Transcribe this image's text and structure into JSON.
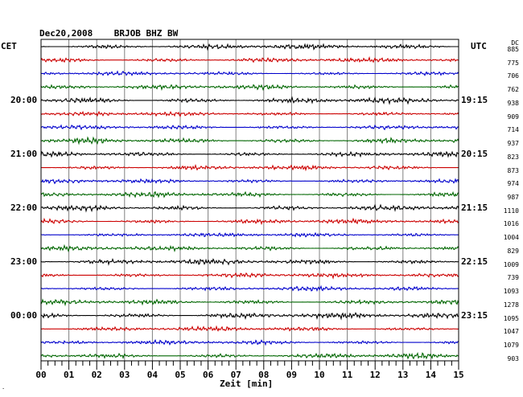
{
  "header": {
    "title": "Dec20,2008    BRJOB BHZ BW",
    "left_label": "CET",
    "right_label": "UTC",
    "dc_label": "DC"
  },
  "trace_colors": [
    "#000000",
    "#cc0000",
    "#0000cc",
    "#006600"
  ],
  "grid_color": "#808080",
  "traces": {
    "offsets": [
      "885",
      "775",
      "706",
      "762",
      "938",
      "909",
      "714",
      "937",
      "823",
      "873",
      "974",
      "987",
      "1110",
      "1016",
      "1004",
      "829",
      "1009",
      "739",
      "1093",
      "1278",
      "1095",
      "1047",
      "1079",
      "903"
    ],
    "amplitudes": [
      2.2,
      2.0,
      1.6,
      2.0,
      2.4,
      1.8,
      1.9,
      2.2,
      2.0,
      1.9,
      1.8,
      2.1,
      2.2,
      2.0,
      1.7,
      2.1,
      2.3,
      2.0,
      1.8,
      2.1,
      2.5,
      1.9,
      1.8,
      2.1
    ]
  },
  "time_labels": [
    {
      "cet": "20:00",
      "utc": "19:15",
      "row": 4
    },
    {
      "cet": "21:00",
      "utc": "20:15",
      "row": 8
    },
    {
      "cet": "22:00",
      "utc": "21:15",
      "row": 12
    },
    {
      "cet": "23:00",
      "utc": "22:15",
      "row": 16
    },
    {
      "cet": "00:00",
      "utc": "23:15",
      "row": 20
    }
  ],
  "x_axis": {
    "ticks": [
      "00",
      "01",
      "02",
      "03",
      "04",
      "05",
      "06",
      "07",
      "08",
      "09",
      "10",
      "11",
      "12",
      "13",
      "14",
      "15"
    ],
    "label": "Zeit [min]",
    "minor_per_major": 4
  }
}
